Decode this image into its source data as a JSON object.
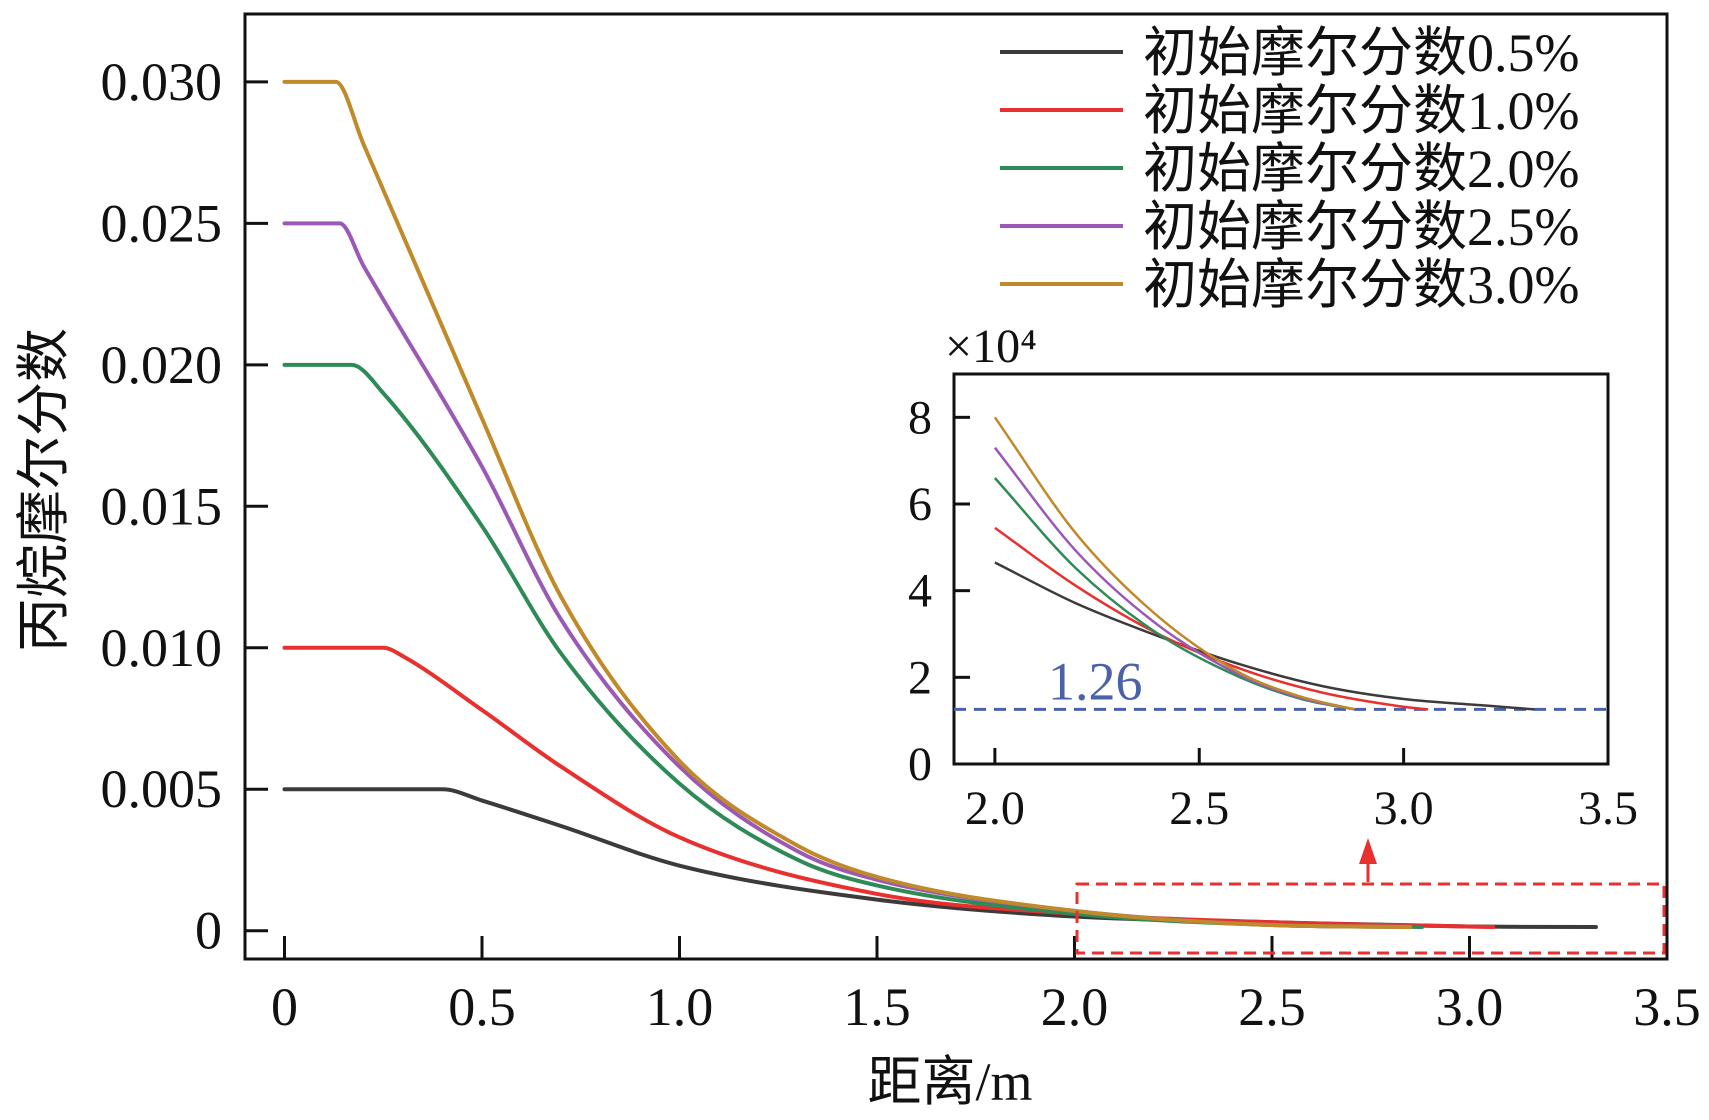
{
  "chart_data": [
    {
      "type": "line",
      "role": "main",
      "title": "",
      "xlabel": "距离/m",
      "ylabel": "丙烷摩尔分数",
      "xlim": [
        -0.1,
        3.5
      ],
      "ylim": [
        -0.001,
        0.0324
      ],
      "xticks": [
        0,
        0.5,
        1.0,
        1.5,
        2.0,
        2.5,
        3.0,
        3.5
      ],
      "xtick_labels": [
        "0",
        "0.5",
        "1.0",
        "1.5",
        "2.0",
        "2.5",
        "3.0",
        "3.5"
      ],
      "yticks": [
        0,
        0.005,
        0.01,
        0.015,
        0.02,
        0.025,
        0.03
      ],
      "ytick_labels": [
        "0",
        "0.005",
        "0.010",
        "0.015",
        "0.020",
        "0.025",
        "0.030"
      ],
      "legend_position": "top-right",
      "series": [
        {
          "name": "初始摩尔分数0.5%",
          "color": "#3d3a3a",
          "x": [
            0,
            0.4,
            0.5,
            0.7,
            1.0,
            1.5,
            2.0,
            2.5,
            3.0,
            3.32
          ],
          "y": [
            0.005,
            0.005,
            0.0046,
            0.0037,
            0.0023,
            0.0011,
            0.0005,
            0.0003,
            0.00015,
            0.00013
          ]
        },
        {
          "name": "初始摩尔分数1.0%",
          "color": "#e8302f",
          "x": [
            0,
            0.25,
            0.3,
            0.5,
            0.7,
            1.0,
            1.5,
            2.0,
            2.5,
            3.06
          ],
          "y": [
            0.01,
            0.01,
            0.0097,
            0.0078,
            0.0058,
            0.0033,
            0.0013,
            0.0006,
            0.0003,
            0.00013
          ]
        },
        {
          "name": "初始摩尔分数2.0%",
          "color": "#2e8b57",
          "x": [
            0,
            0.17,
            0.25,
            0.5,
            0.7,
            1.0,
            1.3,
            1.5,
            2.0,
            2.5,
            2.88
          ],
          "y": [
            0.02,
            0.02,
            0.019,
            0.0143,
            0.0098,
            0.0052,
            0.0025,
            0.0016,
            0.0006,
            0.0002,
            0.00013
          ]
        },
        {
          "name": "初始摩尔分数2.5%",
          "color": "#9b59b6",
          "x": [
            0,
            0.14,
            0.2,
            0.5,
            0.7,
            1.0,
            1.3,
            1.5,
            2.0,
            2.5,
            2.85
          ],
          "y": [
            0.025,
            0.025,
            0.0235,
            0.0164,
            0.011,
            0.0058,
            0.0028,
            0.0018,
            0.0007,
            0.0002,
            0.00013
          ]
        },
        {
          "name": "初始摩尔分数3.0%",
          "color": "#c08a2a",
          "x": [
            0,
            0.13,
            0.2,
            0.5,
            0.7,
            1.0,
            1.3,
            1.5,
            2.0,
            2.5,
            2.85
          ],
          "y": [
            0.03,
            0.03,
            0.0278,
            0.0181,
            0.0118,
            0.006,
            0.003,
            0.0019,
            0.0007,
            0.0002,
            0.00013
          ]
        }
      ]
    },
    {
      "type": "line",
      "role": "inset",
      "title": "",
      "xlabel": "",
      "ylabel": "",
      "multiplier_label": "×10⁴",
      "xlim": [
        1.9,
        3.5
      ],
      "ylim": [
        0,
        9
      ],
      "xticks": [
        2.0,
        2.5,
        3.0,
        3.5
      ],
      "xtick_labels": [
        "2.0",
        "2.5",
        "3.0",
        "3.5"
      ],
      "yticks": [
        0,
        2,
        4,
        6,
        8
      ],
      "ytick_labels": [
        "0",
        "2",
        "4",
        "6",
        "8"
      ],
      "reference_line": {
        "y": 1.26,
        "label": "1.26",
        "color": "#4a63a8"
      },
      "series": [
        {
          "name": "初始摩尔分数0.5%",
          "color": "#3d3a3a",
          "x": [
            2.0,
            2.2,
            2.4,
            2.6,
            2.8,
            3.0,
            3.2,
            3.32
          ],
          "y": [
            4.65,
            3.7,
            2.95,
            2.3,
            1.8,
            1.5,
            1.35,
            1.26
          ]
        },
        {
          "name": "初始摩尔分数1.0%",
          "color": "#e8302f",
          "x": [
            2.0,
            2.2,
            2.4,
            2.6,
            2.8,
            3.0,
            3.06
          ],
          "y": [
            5.45,
            4.1,
            3.0,
            2.2,
            1.65,
            1.32,
            1.26
          ]
        },
        {
          "name": "初始摩尔分数2.0%",
          "color": "#2e8b57",
          "x": [
            2.0,
            2.2,
            2.4,
            2.6,
            2.75,
            2.88
          ],
          "y": [
            6.6,
            4.5,
            3.0,
            2.0,
            1.5,
            1.26
          ]
        },
        {
          "name": "初始摩尔分数2.5%",
          "color": "#9b59b6",
          "x": [
            2.0,
            2.2,
            2.4,
            2.6,
            2.75,
            2.88
          ],
          "y": [
            7.3,
            4.9,
            3.2,
            2.05,
            1.52,
            1.26
          ]
        },
        {
          "name": "初始摩尔分数3.0%",
          "color": "#c08a2a",
          "x": [
            2.0,
            2.2,
            2.4,
            2.6,
            2.75,
            2.88
          ],
          "y": [
            8.0,
            5.3,
            3.4,
            2.1,
            1.55,
            1.26
          ]
        }
      ]
    }
  ]
}
